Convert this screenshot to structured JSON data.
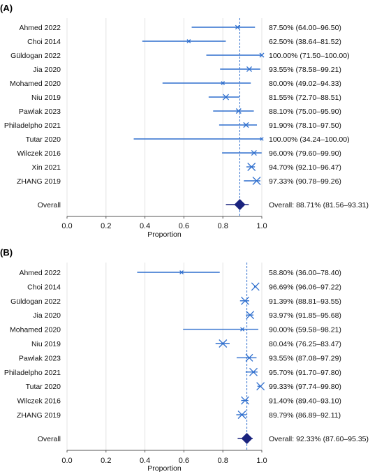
{
  "chart_data": [
    {
      "type": "forest",
      "panel_label": "(A)",
      "xlabel": "Proportion",
      "xlim": [
        0.0,
        1.0
      ],
      "xticks": [
        "0.0",
        "0.2",
        "0.4",
        "0.6",
        "0.8",
        "1.0"
      ],
      "studies": [
        {
          "name": "Ahmed 2022",
          "est": 0.875,
          "lo": 0.64,
          "hi": 0.965,
          "label": "87.50% (64.00–96.50)"
        },
        {
          "name": "Choi 2014",
          "est": 0.625,
          "lo": 0.3864,
          "hi": 0.8152,
          "label": "62.50% (38.64–81.52)"
        },
        {
          "name": "Güldogan 2022",
          "est": 1.0,
          "lo": 0.715,
          "hi": 1.0,
          "label": "100.00% (71.50–100.00)"
        },
        {
          "name": "Jia 2020",
          "est": 0.9355,
          "lo": 0.7858,
          "hi": 0.9921,
          "label": "93.55% (78.58–99.21)"
        },
        {
          "name": "Mohamed 2020",
          "est": 0.8,
          "lo": 0.4902,
          "hi": 0.9433,
          "label": "80.00% (49.02–94.33)"
        },
        {
          "name": "Niu 2019",
          "est": 0.8155,
          "lo": 0.727,
          "hi": 0.8851,
          "label": "81.55% (72.70–88.51)"
        },
        {
          "name": "Pawlak 2023",
          "est": 0.881,
          "lo": 0.75,
          "hi": 0.959,
          "label": "88.10% (75.00–95.90)"
        },
        {
          "name": "Philadelpho 2021",
          "est": 0.919,
          "lo": 0.781,
          "hi": 0.975,
          "label": "91.90% (78.10–97.50)"
        },
        {
          "name": "Tutar 2020",
          "est": 1.0,
          "lo": 0.3424,
          "hi": 1.0,
          "label": "100.00% (34.24–100.00)"
        },
        {
          "name": "Wilczek 2016",
          "est": 0.96,
          "lo": 0.796,
          "hi": 0.999,
          "label": "96.00% (79.60–99.90)"
        },
        {
          "name": "Xin 2021",
          "est": 0.947,
          "lo": 0.921,
          "hi": 0.9647,
          "label": "94.70% (92.10–96.47)"
        },
        {
          "name": "ZHANG 2019",
          "est": 0.9733,
          "lo": 0.9078,
          "hi": 0.9926,
          "label": "97.33% (90.78–99.26)"
        }
      ],
      "overall": {
        "name": "Overall",
        "est": 0.8871,
        "lo": 0.8156,
        "hi": 0.9331,
        "label": "Overall: 88.71% (81.56–93.31)"
      },
      "colors": {
        "study": "#2f6fce",
        "overall": "#1a237e"
      }
    },
    {
      "type": "forest",
      "panel_label": "(B)",
      "xlabel": "Proportion",
      "xlim": [
        0.0,
        1.0
      ],
      "xticks": [
        "0.0",
        "0.2",
        "0.4",
        "0.6",
        "0.8",
        "1.0"
      ],
      "studies": [
        {
          "name": "Ahmed 2022",
          "est": 0.588,
          "lo": 0.36,
          "hi": 0.784,
          "label": "58.80% (36.00–78.40)"
        },
        {
          "name": "Choi 2014",
          "est": 0.9669,
          "lo": 0.9606,
          "hi": 0.9722,
          "label": "96.69% (96.06–97.22)"
        },
        {
          "name": "Güldogan 2022",
          "est": 0.9139,
          "lo": 0.8881,
          "hi": 0.9355,
          "label": "91.39% (88.81–93.55)"
        },
        {
          "name": "Jia 2020",
          "est": 0.9397,
          "lo": 0.9185,
          "hi": 0.9568,
          "label": "93.97% (91.85–95.68)"
        },
        {
          "name": "Mohamed 2020",
          "est": 0.9,
          "lo": 0.5958,
          "hi": 0.9821,
          "label": "90.00% (59.58–98.21)"
        },
        {
          "name": "Niu 2019",
          "est": 0.8004,
          "lo": 0.7625,
          "hi": 0.8347,
          "label": "80.04% (76.25–83.47)"
        },
        {
          "name": "Pawlak 2023",
          "est": 0.9355,
          "lo": 0.8708,
          "hi": 0.9729,
          "label": "93.55% (87.08–97.29)"
        },
        {
          "name": "Philadelpho 2021",
          "est": 0.957,
          "lo": 0.917,
          "hi": 0.978,
          "label": "95.70% (91.70–97.80)"
        },
        {
          "name": "Tutar 2020",
          "est": 0.9933,
          "lo": 0.9774,
          "hi": 0.998,
          "label": "99.33% (97.74–99.80)"
        },
        {
          "name": "Wilczek 2016",
          "est": 0.914,
          "lo": 0.894,
          "hi": 0.931,
          "label": "91.40% (89.40–93.10)"
        },
        {
          "name": "ZHANG 2019",
          "est": 0.8979,
          "lo": 0.8689,
          "hi": 0.9211,
          "label": "89.79% (86.89–92.11)"
        }
      ],
      "overall": {
        "name": "Overall",
        "est": 0.9233,
        "lo": 0.876,
        "hi": 0.9535,
        "label": "Overall: 92.33% (87.60–95.35)"
      },
      "colors": {
        "study": "#2f6fce",
        "overall": "#1a237e"
      }
    }
  ]
}
